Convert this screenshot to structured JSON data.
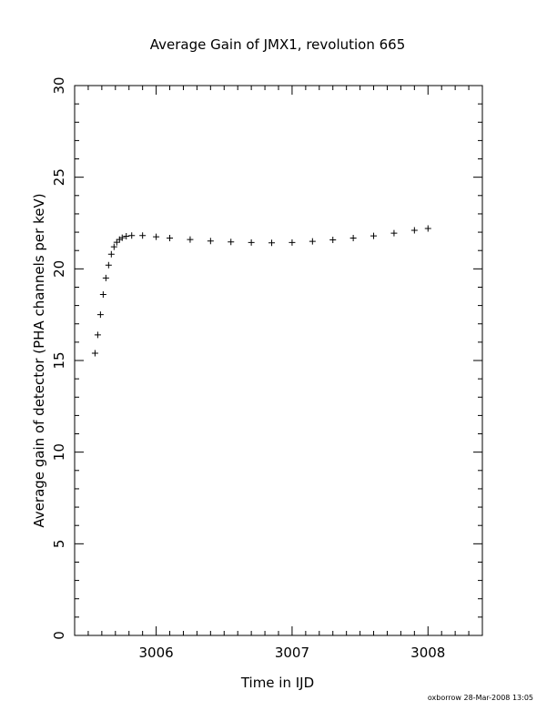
{
  "chart_data": {
    "type": "scatter",
    "title": "Average Gain of JMX1, revolution 665",
    "xlabel": "Time in IJD",
    "ylabel": "Average gain of detector (PHA channels per keV)",
    "xlim": [
      3005.4,
      3008.4
    ],
    "ylim": [
      0,
      30
    ],
    "x_ticks": [
      3006,
      3007,
      3008
    ],
    "x_tick_labels": [
      "3006",
      "3007",
      "3008"
    ],
    "y_ticks": [
      0,
      5,
      10,
      15,
      20,
      25,
      30
    ],
    "y_tick_labels": [
      "0",
      "5",
      "10",
      "15",
      "20",
      "25",
      "30"
    ],
    "grid": false,
    "legend": "none",
    "marker": "plus",
    "series": [
      {
        "x": [
          3005.55,
          3005.57,
          3005.59,
          3005.61,
          3005.63,
          3005.65,
          3005.67,
          3005.69,
          3005.71,
          3005.73,
          3005.75,
          3005.78,
          3005.82,
          3005.9,
          3006.0,
          3006.1,
          3006.25,
          3006.4,
          3006.55,
          3006.7,
          3006.85,
          3007.0,
          3007.15,
          3007.3,
          3007.45,
          3007.6,
          3007.75,
          3007.9,
          3008.0
        ],
        "y": [
          15.4,
          16.4,
          17.5,
          18.6,
          19.5,
          20.2,
          20.8,
          21.2,
          21.45,
          21.6,
          21.7,
          21.78,
          21.82,
          21.82,
          21.75,
          21.68,
          21.6,
          21.52,
          21.47,
          21.44,
          21.42,
          21.44,
          21.5,
          21.58,
          21.68,
          21.8,
          21.95,
          22.1,
          22.2
        ]
      }
    ]
  },
  "footer": {
    "stamp": "oxborrow 28-Mar-2008 13:05"
  }
}
